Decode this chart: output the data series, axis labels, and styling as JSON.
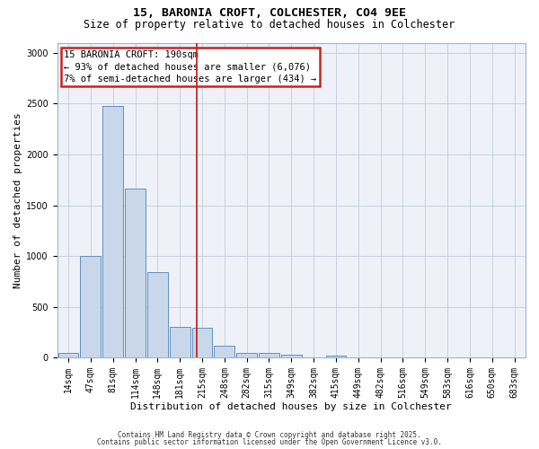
{
  "title1": "15, BARONIA CROFT, COLCHESTER, CO4 9EE",
  "title2": "Size of property relative to detached houses in Colchester",
  "xlabel": "Distribution of detached houses by size in Colchester",
  "ylabel": "Number of detached properties",
  "categories": [
    "14sqm",
    "47sqm",
    "81sqm",
    "114sqm",
    "148sqm",
    "181sqm",
    "215sqm",
    "248sqm",
    "282sqm",
    "315sqm",
    "349sqm",
    "382sqm",
    "415sqm",
    "449sqm",
    "482sqm",
    "516sqm",
    "549sqm",
    "583sqm",
    "616sqm",
    "650sqm",
    "683sqm"
  ],
  "values": [
    50,
    1005,
    2480,
    1660,
    840,
    300,
    295,
    120,
    50,
    50,
    30,
    0,
    20,
    0,
    0,
    0,
    0,
    0,
    0,
    0,
    0
  ],
  "bar_color": "#c8d8ea",
  "bar_edge_color": "#6090c0",
  "vline_x_index": 5.75,
  "vline_color": "#cc2222",
  "annotation_text_line1": "15 BARONIA CROFT: 190sqm",
  "annotation_text_line2": "← 93% of detached houses are smaller (6,076)",
  "annotation_text_line3": "7% of semi-detached houses are larger (434) →",
  "annotation_box_color": "#cc2222",
  "ylim": [
    0,
    3100
  ],
  "yticks": [
    0,
    500,
    1000,
    1500,
    2000,
    2500,
    3000
  ],
  "footer1": "Contains HM Land Registry data © Crown copyright and database right 2025.",
  "footer2": "Contains public sector information licensed under the Open Government Licence v3.0.",
  "bg_color": "#eef2f8",
  "grid_color": "#c0ccd8",
  "title1_fontsize": 9.5,
  "title2_fontsize": 8.5,
  "xlabel_fontsize": 8,
  "ylabel_fontsize": 8,
  "tick_fontsize": 7,
  "annotation_fontsize": 7.5,
  "footer_fontsize": 5.5
}
